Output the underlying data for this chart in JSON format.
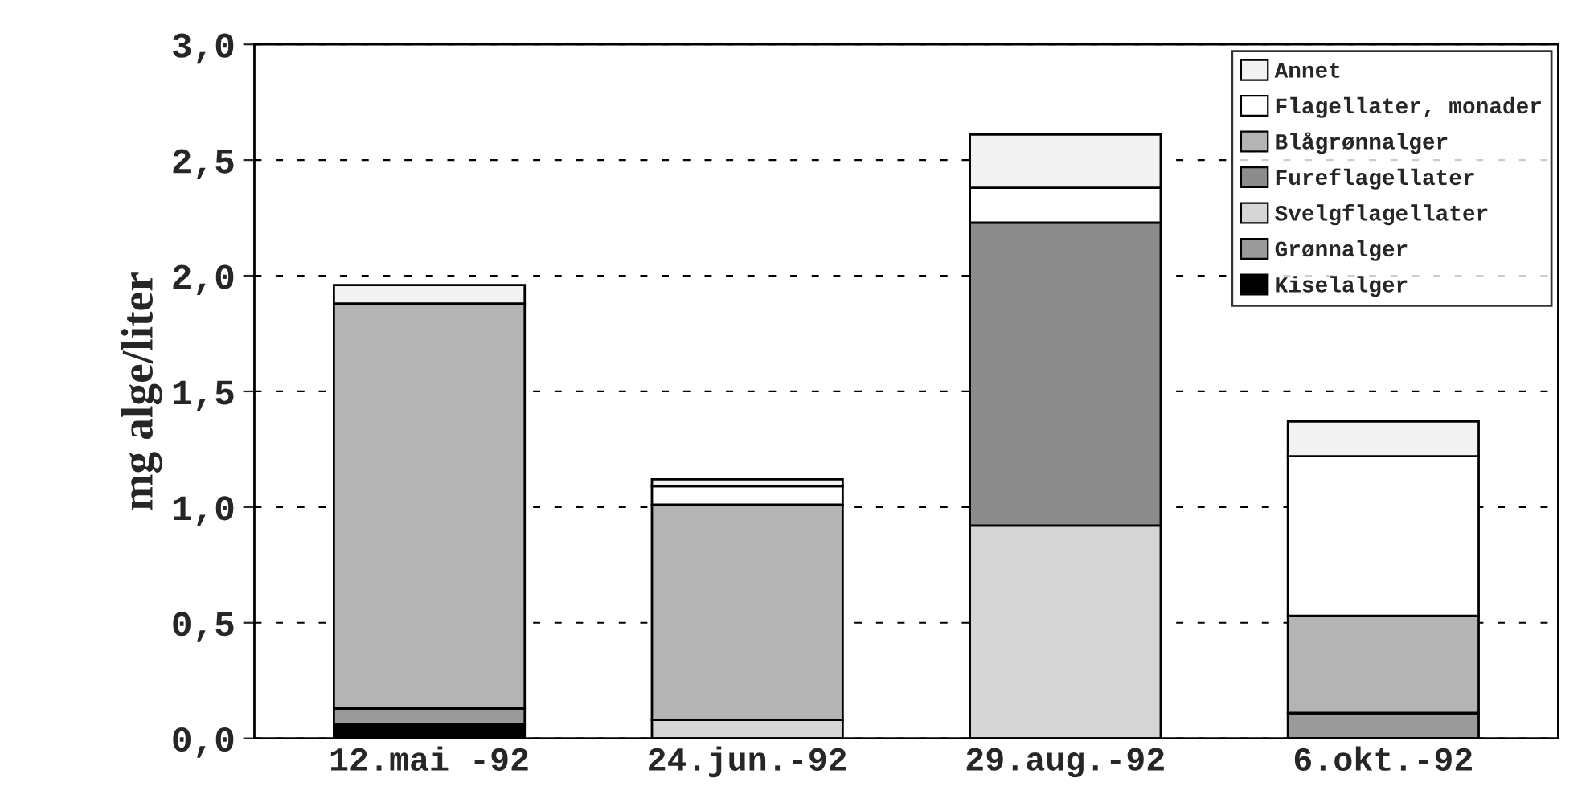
{
  "chart_data": {
    "type": "bar",
    "stacked": true,
    "ylabel": "mg alge/liter",
    "categories": [
      "12.mai -92",
      "24.jun.-92",
      "29.aug.-92",
      "6.okt.-92"
    ],
    "series": [
      {
        "name": "Kiselalger",
        "color": "#000000",
        "values": [
          0.06,
          0,
          0,
          0
        ]
      },
      {
        "name": "Grønnalger",
        "color": "#9a9a9a",
        "values": [
          0.07,
          0,
          0,
          0.11
        ]
      },
      {
        "name": "Svelgflagellater",
        "color": "#d6d6d6",
        "values": [
          0,
          0.08,
          0.92,
          0
        ]
      },
      {
        "name": "Fureflagellater",
        "color": "#8c8c8c",
        "values": [
          0,
          0,
          1.31,
          0
        ]
      },
      {
        "name": "Blågrønnalger",
        "color": "#b4b4b4",
        "values": [
          1.75,
          0.93,
          0,
          0.42
        ]
      },
      {
        "name": "Flagellater, monader",
        "color": "#ffffff",
        "values": [
          0,
          0.08,
          0.15,
          0.69
        ]
      },
      {
        "name": "Annet",
        "color": "#f2f2f2",
        "values": [
          0.08,
          0.03,
          0.23,
          0.15
        ]
      }
    ],
    "ylim": [
      0,
      3
    ],
    "yticks": [
      {
        "value": 0,
        "label": "0,0"
      },
      {
        "value": 0.5,
        "label": "0,5"
      },
      {
        "value": 1,
        "label": "1,0"
      },
      {
        "value": 1.5,
        "label": "1,5"
      },
      {
        "value": 2,
        "label": "2,0"
      },
      {
        "value": 2.5,
        "label": "2,5"
      },
      {
        "value": 3,
        "label": "3,0"
      }
    ],
    "grid": "y",
    "legend": "top right"
  }
}
